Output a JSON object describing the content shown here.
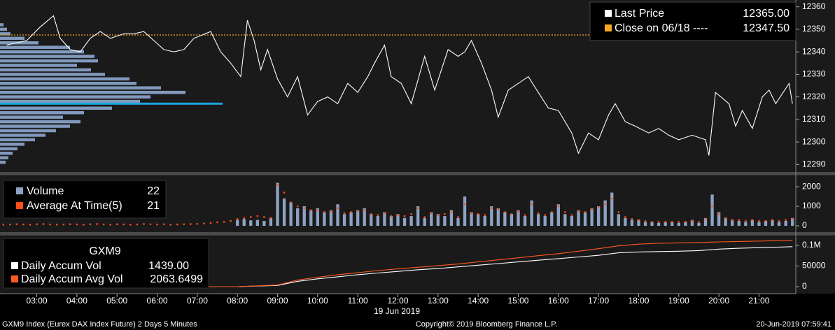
{
  "chart_data": [
    {
      "type": "line",
      "ylim": [
        12287,
        12363
      ],
      "yticks": [
        12290,
        12300,
        12310,
        12320,
        12330,
        12340,
        12350,
        12360
      ],
      "xlim": [
        "02:05",
        "21:55"
      ],
      "series": [
        {
          "name": "Last Price",
          "color": "#ffffff",
          "legend_value": "12365.00",
          "x": [
            "02:15",
            "02:45",
            "03:05",
            "03:25",
            "03:35",
            "03:50",
            "04:05",
            "04:20",
            "04:35",
            "04:50",
            "05:10",
            "05:25",
            "05:40",
            "05:55",
            "06:10",
            "06:25",
            "06:40",
            "06:55",
            "07:20",
            "07:35",
            "07:50",
            "08:05",
            "08:15",
            "08:25",
            "08:35",
            "08:45",
            "09:00",
            "09:15",
            "09:30",
            "09:45",
            "10:00",
            "10:15",
            "10:30",
            "10:45",
            "11:00",
            "11:15",
            "11:25",
            "11:40",
            "11:50",
            "12:05",
            "12:20",
            "12:40",
            "12:55",
            "13:15",
            "13:30",
            "13:40",
            "13:50",
            "14:05",
            "14:20",
            "14:30",
            "14:45",
            "15:00",
            "15:15",
            "15:30",
            "15:45",
            "16:00",
            "16:20",
            "16:30",
            "16:45",
            "17:00",
            "17:15",
            "17:25",
            "17:40",
            "17:55",
            "18:15",
            "18:30",
            "18:45",
            "19:00",
            "19:20",
            "19:40",
            "19:45",
            "19:55",
            "20:15",
            "20:25",
            "20:35",
            "20:50",
            "21:05",
            "21:15",
            "21:25",
            "21:45",
            "21:50"
          ],
          "values": [
            12343,
            12345,
            12351,
            12356,
            12346,
            12341,
            12340,
            12346,
            12349,
            12346,
            12348,
            12348,
            12349,
            12345,
            12341,
            12340,
            12341,
            12346,
            12349,
            12340,
            12335,
            12329,
            12354,
            12345,
            12332,
            12341,
            12328,
            12320,
            12329,
            12312,
            12318,
            12320,
            12317,
            12326,
            12322,
            12329,
            12335,
            12343,
            12329,
            12326,
            12317,
            12338,
            12323,
            12341,
            12338,
            12340,
            12345,
            12335,
            12323,
            12311,
            12323,
            12326,
            12329,
            12322,
            12315,
            12314,
            12304,
            12295,
            12304,
            12301,
            12312,
            12317,
            12309,
            12307,
            12304,
            12306,
            12303,
            12301,
            12303,
            12301,
            12294,
            12322,
            12317,
            12307,
            12314,
            12306,
            12320,
            12323,
            12317,
            12326,
            12317
          ]
        }
      ],
      "reference_line": {
        "name": "Close on 06/18 ----",
        "value": 12347.5,
        "label": "12347.50",
        "color": "#f5a623"
      },
      "volume_profile": {
        "color": "#8199bd",
        "prices": [
          12352,
          12350,
          12348,
          12346,
          12344,
          12342,
          12340,
          12338,
          12336,
          12334,
          12332,
          12330,
          12328,
          12326,
          12324,
          12322,
          12320,
          12318,
          12315,
          12313,
          12311,
          12309,
          12307,
          12305,
          12303,
          12301,
          12299,
          12297,
          12295,
          12293,
          12291
        ],
        "values": [
          5,
          10,
          15,
          35,
          55,
          100,
          120,
          135,
          140,
          110,
          130,
          150,
          185,
          195,
          230,
          265,
          215,
          200,
          160,
          120,
          90,
          115,
          100,
          80,
          65,
          50,
          35,
          25,
          18,
          12,
          8
        ]
      },
      "point_of_control": {
        "price": 12317,
        "value": 318,
        "color": "#1aa7e0"
      }
    },
    {
      "type": "bar",
      "ylim": [
        -250,
        2540
      ],
      "yticks": [
        0,
        1000,
        2000
      ],
      "xlim": [
        "02:05",
        "21:55"
      ],
      "x": [
        "02:10",
        "02:20",
        "02:30",
        "02:40",
        "02:50",
        "03:00",
        "03:10",
        "03:20",
        "03:30",
        "03:40",
        "03:50",
        "04:00",
        "04:10",
        "04:20",
        "04:30",
        "04:40",
        "04:50",
        "05:00",
        "05:10",
        "05:20",
        "05:30",
        "05:40",
        "05:50",
        "06:00",
        "06:10",
        "06:20",
        "06:30",
        "06:40",
        "06:50",
        "07:00",
        "07:10",
        "07:20",
        "07:30",
        "07:40",
        "07:50",
        "08:00",
        "08:10",
        "08:20",
        "08:30",
        "08:40",
        "08:50",
        "09:00",
        "09:10",
        "09:20",
        "09:30",
        "09:40",
        "09:50",
        "10:00",
        "10:10",
        "10:20",
        "10:30",
        "10:40",
        "10:50",
        "11:00",
        "11:10",
        "11:20",
        "11:30",
        "11:40",
        "11:50",
        "12:00",
        "12:10",
        "12:20",
        "12:30",
        "12:40",
        "12:50",
        "13:00",
        "13:10",
        "13:20",
        "13:30",
        "13:40",
        "13:50",
        "14:00",
        "14:10",
        "14:20",
        "14:30",
        "14:40",
        "14:50",
        "15:00",
        "15:10",
        "15:20",
        "15:30",
        "15:40",
        "15:50",
        "16:00",
        "16:10",
        "16:20",
        "16:30",
        "16:40",
        "16:50",
        "17:00",
        "17:10",
        "17:20",
        "17:30",
        "17:40",
        "17:50",
        "18:00",
        "18:10",
        "18:20",
        "18:30",
        "18:40",
        "18:50",
        "19:00",
        "19:10",
        "19:20",
        "19:30",
        "19:40",
        "19:50",
        "20:00",
        "20:10",
        "20:20",
        "20:30",
        "20:40",
        "20:50",
        "21:00",
        "21:10",
        "21:20",
        "21:30",
        "21:40",
        "21:50"
      ],
      "series": [
        {
          "name": "Volume",
          "color": "#8ea3c4",
          "legend_value": 22,
          "values": [
            null,
            null,
            null,
            null,
            null,
            null,
            null,
            null,
            null,
            null,
            null,
            null,
            null,
            null,
            null,
            null,
            null,
            null,
            null,
            null,
            null,
            null,
            null,
            null,
            null,
            null,
            null,
            null,
            null,
            null,
            null,
            null,
            null,
            null,
            null,
            300,
            350,
            280,
            300,
            250,
            400,
            2200,
            1400,
            1200,
            900,
            1000,
            800,
            900,
            700,
            800,
            1100,
            600,
            700,
            800,
            900,
            600,
            500,
            700,
            500,
            600,
            400,
            500,
            1000,
            400,
            700,
            600,
            500,
            800,
            400,
            1500,
            700,
            600,
            500,
            1000,
            900,
            700,
            600,
            800,
            500,
            1300,
            600,
            500,
            700,
            1100,
            600,
            500,
            800,
            700,
            900,
            1000,
            1300,
            1700,
            600,
            400,
            300,
            300,
            200,
            200,
            150,
            200,
            200,
            150,
            200,
            300,
            150,
            400,
            1600,
            700,
            400,
            300,
            250,
            200,
            300,
            200,
            250,
            300,
            200,
            250,
            400
          ]
        },
        {
          "name": "Average At Time(5)",
          "color": "#ff4e1a",
          "marker": "dot",
          "legend_value": 21,
          "values": [
            60,
            70,
            80,
            70,
            60,
            80,
            90,
            70,
            60,
            70,
            80,
            70,
            60,
            80,
            90,
            70,
            60,
            80,
            70,
            60,
            70,
            90,
            80,
            70,
            80,
            60,
            70,
            80,
            90,
            100,
            120,
            150,
            180,
            200,
            250,
            350,
            400,
            450,
            500,
            450,
            400,
            2100,
            1700,
            1200,
            1000,
            900,
            800,
            800,
            700,
            750,
            900,
            650,
            700,
            750,
            800,
            600,
            550,
            650,
            500,
            550,
            500,
            600,
            900,
            450,
            650,
            550,
            600,
            700,
            450,
            1100,
            650,
            600,
            550,
            900,
            850,
            700,
            600,
            750,
            550,
            1100,
            650,
            550,
            700,
            1000,
            700,
            550,
            750,
            700,
            850,
            950,
            1100,
            1400,
            700,
            450,
            350,
            300,
            250,
            200,
            200,
            200,
            200,
            200,
            200,
            250,
            200,
            350,
            1000,
            600,
            400,
            300,
            300,
            250,
            300,
            250,
            250,
            300,
            250,
            300,
            350
          ]
        }
      ]
    },
    {
      "type": "line",
      "title": "GXM9",
      "ylim": [
        -13500,
        122000
      ],
      "yticks": [
        0,
        50000,
        {
          "value": 100000,
          "label": "0.1M"
        }
      ],
      "xlim": [
        "02:05",
        "21:55"
      ],
      "xticks": [
        "03:00",
        "04:00",
        "05:00",
        "06:00",
        "07:00",
        "08:00",
        "09:00",
        "10:00",
        "11:00",
        "12:00",
        "13:00",
        "14:00",
        "15:00",
        "16:00",
        "17:00",
        "18:00",
        "19:00",
        "20:00",
        "21:00"
      ],
      "xlabel": "19 Jun 2019",
      "series": [
        {
          "name": "Daily Accum Vol",
          "color": "#ffffff",
          "legend_value": "1439.00",
          "x": [
            "02:10",
            "07:30",
            "08:00",
            "08:30",
            "09:00",
            "09:30",
            "10:00",
            "10:30",
            "11:00",
            "11:30",
            "12:00",
            "12:30",
            "13:00",
            "13:30",
            "14:00",
            "14:30",
            "15:00",
            "15:30",
            "16:00",
            "16:30",
            "17:00",
            "17:30",
            "18:00",
            "18:30",
            "19:00",
            "19:30",
            "20:00",
            "20:30",
            "21:00",
            "21:30",
            "21:50"
          ],
          "values": [
            0,
            0,
            0,
            1500,
            3000,
            13000,
            19000,
            24000,
            29000,
            33000,
            37000,
            41000,
            44000,
            48000,
            52000,
            56000,
            60000,
            64000,
            68000,
            72000,
            76000,
            82000,
            84000,
            85000,
            86000,
            87500,
            91000,
            93000,
            94500,
            96000,
            97000
          ]
        },
        {
          "name": "Daily Accum Avg Vol",
          "color": "#ff5a1f",
          "legend_value": "2063.6499",
          "x": [
            "02:10",
            "07:30",
            "08:00",
            "08:30",
            "09:00",
            "09:30",
            "10:00",
            "10:30",
            "11:00",
            "11:30",
            "12:00",
            "12:30",
            "13:00",
            "13:30",
            "14:00",
            "14:30",
            "15:00",
            "15:30",
            "16:00",
            "16:30",
            "17:00",
            "17:30",
            "18:00",
            "18:30",
            "19:00",
            "19:30",
            "20:00",
            "20:30",
            "21:00",
            "21:30",
            "21:50"
          ],
          "values": [
            0,
            0,
            0,
            2000,
            4000,
            16000,
            23000,
            29000,
            34000,
            39000,
            43000,
            47000,
            51000,
            55000,
            60000,
            65000,
            70000,
            75000,
            80000,
            86000,
            92000,
            99000,
            103000,
            105000,
            106000,
            107000,
            108500,
            109500,
            110500,
            111500,
            112000
          ]
        }
      ]
    }
  ],
  "footer": {
    "left": "GXM9 Index (Eurex DAX Index Future) 2 Days 5 Minutes",
    "center": "Copyright© 2019 Bloomberg Finance L.P.",
    "right": "20-Jun-2019 07:59:41"
  }
}
